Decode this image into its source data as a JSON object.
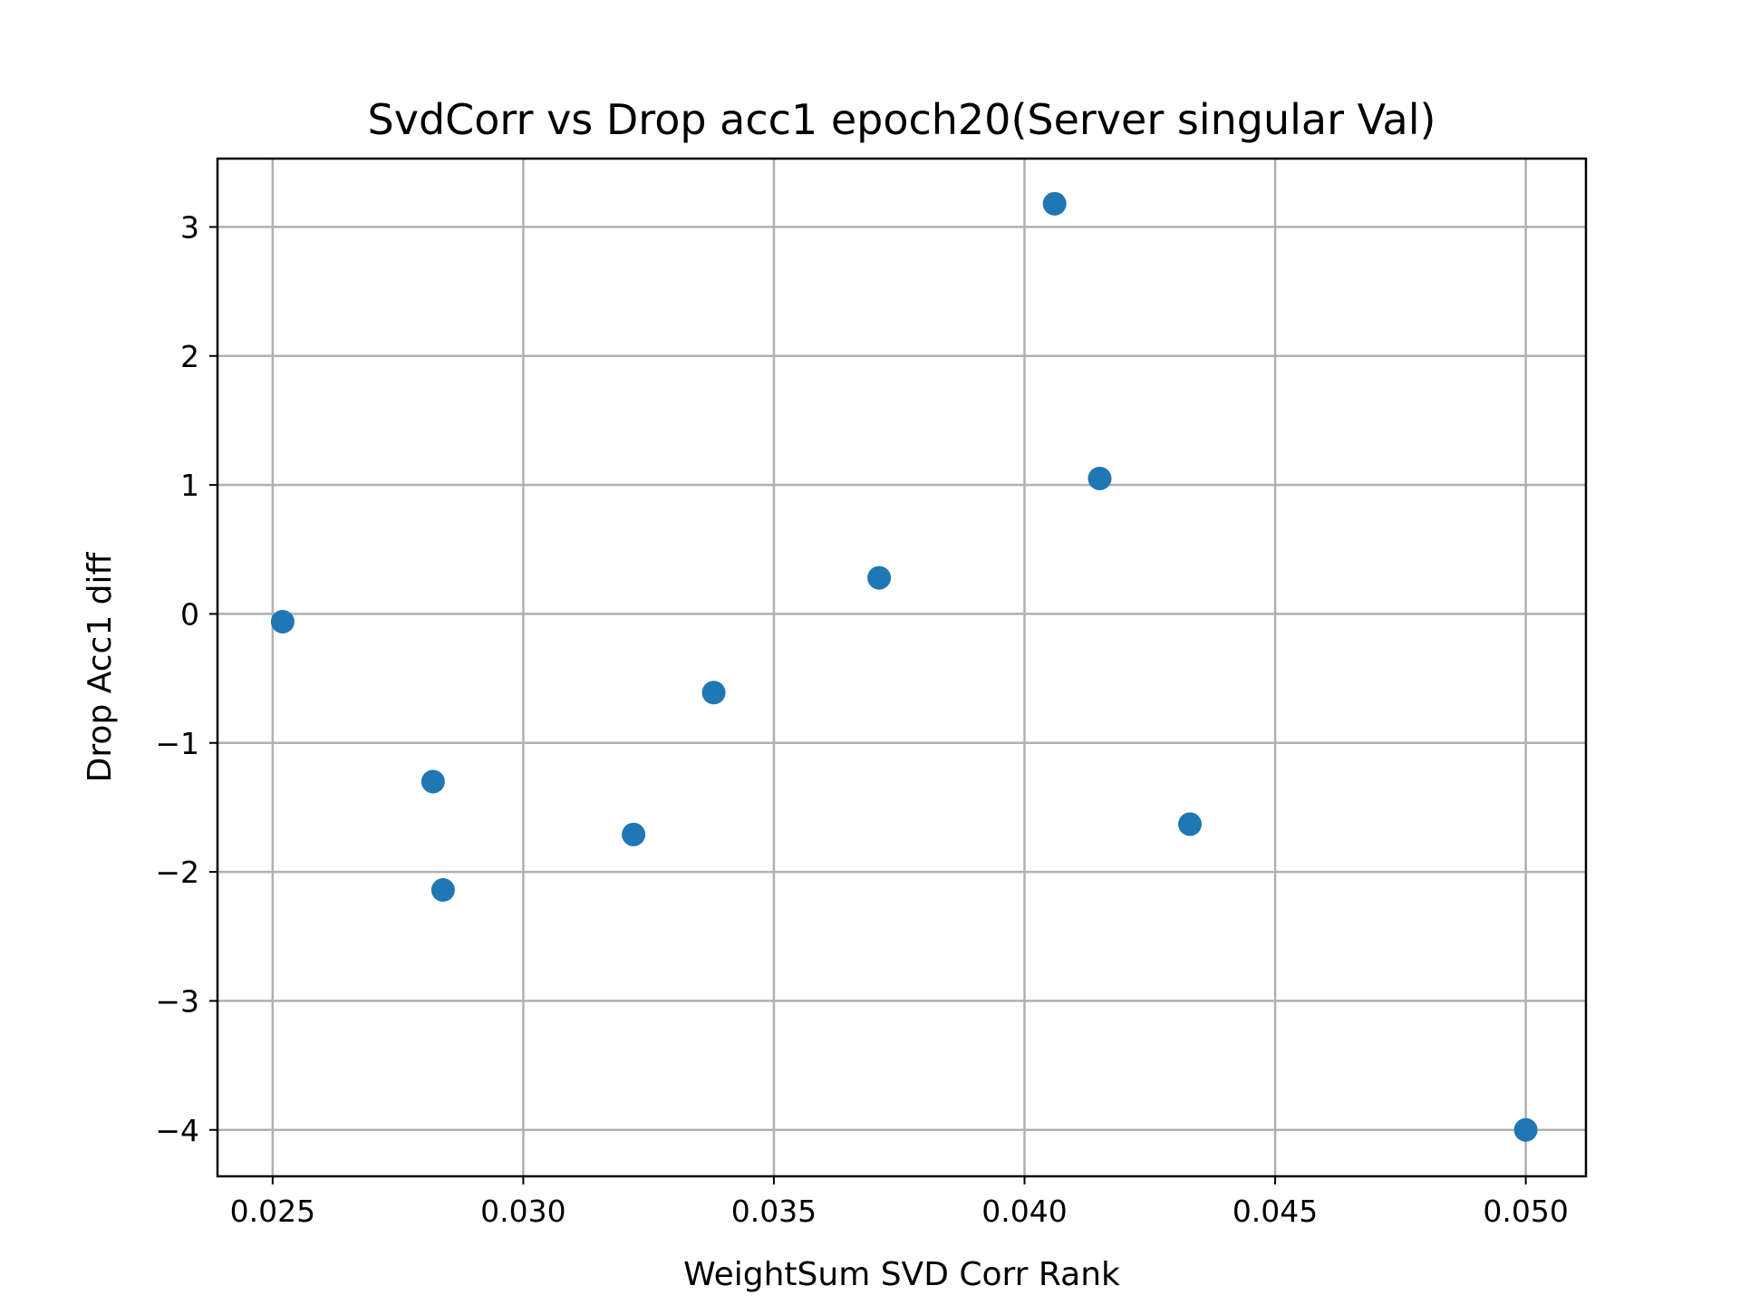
{
  "chart_data": {
    "type": "scatter",
    "title": "SvdCorr vs Drop acc1 epoch20(Server singular Val)",
    "xlabel": "WeightSum SVD Corr Rank",
    "ylabel": "Drop Acc1 diff",
    "xlim": [
      0.0239,
      0.0512
    ],
    "ylim": [
      -4.36,
      3.53
    ],
    "x_ticks": [
      0.025,
      0.03,
      0.035,
      0.04,
      0.045,
      0.05
    ],
    "x_tick_labels": [
      "0.025",
      "0.030",
      "0.035",
      "0.040",
      "0.045",
      "0.050"
    ],
    "y_ticks": [
      -4,
      -3,
      -2,
      -1,
      0,
      1,
      2,
      3
    ],
    "y_tick_labels": [
      "−4",
      "−3",
      "−2",
      "−1",
      "0",
      "1",
      "2",
      "3"
    ],
    "grid": true,
    "color": "#1f77b4",
    "points": [
      {
        "x": 0.0252,
        "y": -0.06
      },
      {
        "x": 0.0282,
        "y": -1.3
      },
      {
        "x": 0.0284,
        "y": -2.14
      },
      {
        "x": 0.0322,
        "y": -1.71
      },
      {
        "x": 0.0338,
        "y": -0.61
      },
      {
        "x": 0.0371,
        "y": 0.28
      },
      {
        "x": 0.0406,
        "y": 3.18
      },
      {
        "x": 0.0415,
        "y": 1.05
      },
      {
        "x": 0.0433,
        "y": -1.63
      },
      {
        "x": 0.05,
        "y": -4.0
      }
    ]
  }
}
